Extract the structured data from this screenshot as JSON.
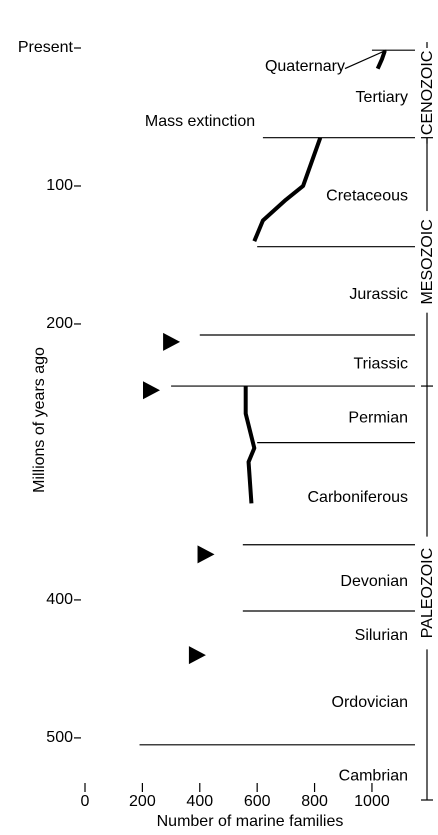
{
  "chart_data": {
    "type": "line",
    "xlabel": "Number of marine families",
    "ylabel": "Millions of years ago",
    "xlim": [
      0,
      1150
    ],
    "xticks": [
      0,
      200,
      400,
      600,
      800,
      1000
    ],
    "ylim": [
      0,
      545
    ],
    "yticks": [
      {
        "value": 0,
        "label": "Present"
      },
      100,
      200,
      400,
      500
    ],
    "color": "#000000",
    "x": [
      1045,
      1035,
      1020,
      null,
      820,
      760,
      700,
      620,
      590,
      null,
      560,
      560,
      590,
      570,
      580
    ],
    "values": [
      2,
      8,
      15,
      null,
      65,
      100,
      110,
      125,
      140,
      null,
      245,
      265,
      290,
      300,
      330
    ],
    "extinction_markers": {
      "x": [
        300,
        230,
        420,
        390
      ],
      "values": [
        213,
        248,
        367,
        440
      ]
    },
    "annotation": "Mass extinction",
    "periods": [
      {
        "name": "Quaternary",
        "start": 0,
        "end": 1.6,
        "line_from": 1000
      },
      {
        "name": "Tertiary",
        "start": 1.6,
        "end": 65,
        "line_from": 620
      },
      {
        "name": "Cretaceous",
        "start": 65,
        "end": 144,
        "line_from": 600
      },
      {
        "name": "Jurassic",
        "start": 144,
        "end": 208,
        "line_from": 400
      },
      {
        "name": "Triassic",
        "start": 208,
        "end": 245,
        "line_from": 300
      },
      {
        "name": "Permian",
        "start": 245,
        "end": 286,
        "line_from": 600
      },
      {
        "name": "Carboniferous",
        "start": 286,
        "end": 360,
        "line_from": 550
      },
      {
        "name": "Devonian",
        "start": 360,
        "end": 408,
        "line_from": 550
      },
      {
        "name": "Silurian",
        "start": 408,
        "end": 438,
        "line_from": null
      },
      {
        "name": "Ordovician",
        "start": 438,
        "end": 505,
        "line_from": 190
      },
      {
        "name": "Cambrian",
        "start": 505,
        "end": 545,
        "line_from": null
      }
    ],
    "eras": [
      {
        "name": "CENOZOIC",
        "start": 0,
        "end": 65
      },
      {
        "name": "MESOZOIC",
        "start": 65,
        "end": 245
      },
      {
        "name": "PALEOZOIC",
        "start": 245,
        "end": 545
      }
    ]
  }
}
